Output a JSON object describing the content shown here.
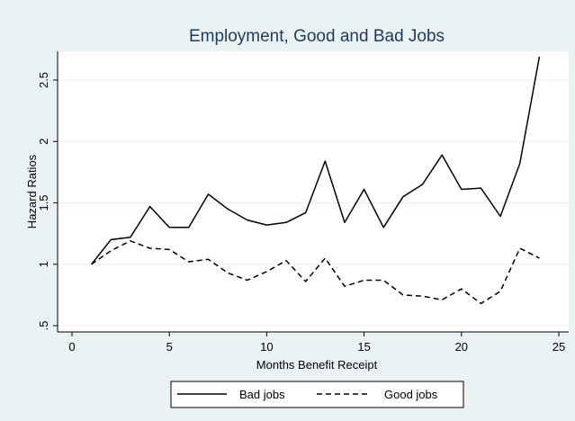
{
  "chart_data": {
    "type": "line",
    "title": "Employment, Good and Bad Jobs",
    "xlabel": "Months Benefit Receipt",
    "ylabel": "Hazard Ratios",
    "xlim": [
      0,
      25
    ],
    "ylim": [
      0.5,
      2.7
    ],
    "x_ticks": [
      0,
      5,
      10,
      15,
      20,
      25
    ],
    "x_tick_labels": [
      "0",
      "5",
      "10",
      "15",
      "20",
      "25"
    ],
    "y_ticks": [
      0.5,
      1,
      1.5,
      2,
      2.5
    ],
    "y_tick_labels": [
      ".5",
      "1",
      "1.5",
      "2",
      "2.5"
    ],
    "x": [
      1,
      2,
      3,
      4,
      5,
      6,
      7,
      8,
      9,
      10,
      11,
      12,
      13,
      14,
      15,
      16,
      17,
      18,
      19,
      20,
      21,
      22,
      23,
      24
    ],
    "series": [
      {
        "name": "Bad jobs",
        "style": "solid",
        "values": [
          1.0,
          1.2,
          1.22,
          1.47,
          1.3,
          1.3,
          1.57,
          1.45,
          1.36,
          1.32,
          1.34,
          1.42,
          1.84,
          1.34,
          1.61,
          1.3,
          1.55,
          1.65,
          1.89,
          1.61,
          1.62,
          1.39,
          1.82,
          2.69
        ]
      },
      {
        "name": "Good jobs",
        "style": "dashed",
        "values": [
          1.0,
          1.11,
          1.19,
          1.13,
          1.12,
          1.02,
          1.04,
          0.93,
          0.87,
          0.94,
          1.03,
          0.86,
          1.05,
          0.82,
          0.87,
          0.87,
          0.75,
          0.74,
          0.71,
          0.8,
          0.68,
          0.78,
          1.13,
          1.05
        ]
      }
    ],
    "grid": "horizontal",
    "legend_position": "bottom",
    "colors": {
      "background": "#eaf2f3",
      "plot_background": "#ffffff",
      "title": "#1e3a5c",
      "line": "#000000",
      "grid": "#eaf2f3"
    }
  }
}
